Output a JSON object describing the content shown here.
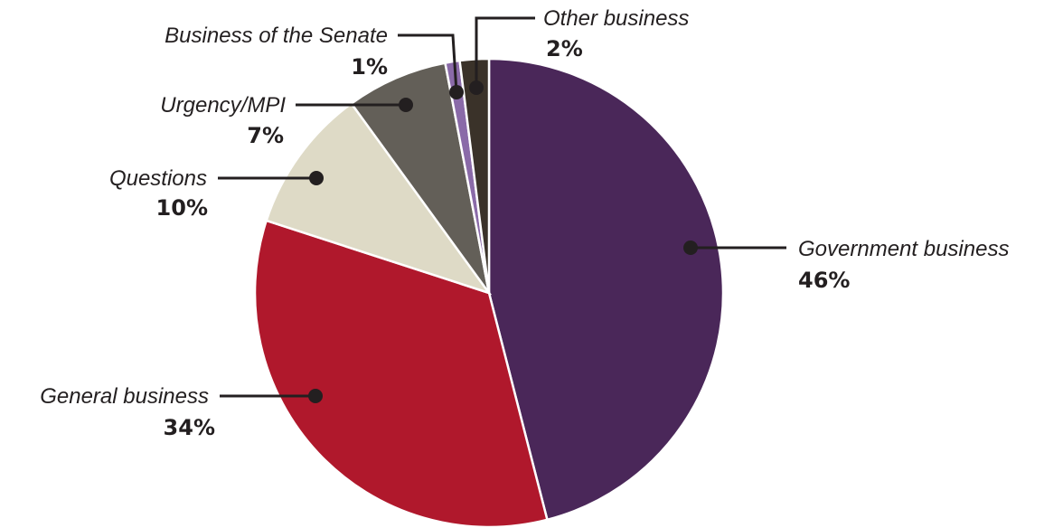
{
  "chart_data": {
    "type": "pie",
    "start_angle_deg": 0,
    "direction": "clockwise",
    "slices": [
      {
        "label": "Government business",
        "value": 46,
        "value_label": "46%",
        "color": "#4a2759"
      },
      {
        "label": "General business",
        "value": 34,
        "value_label": "34%",
        "color": "#b0182c"
      },
      {
        "label": "Questions",
        "value": 10,
        "value_label": "10%",
        "color": "#dedac6"
      },
      {
        "label": "Urgency/MPI",
        "value": 7,
        "value_label": "7%",
        "color": "#635f58"
      },
      {
        "label": "Business of the Senate",
        "value": 1,
        "value_label": "1%",
        "color": "#8a6aa8"
      },
      {
        "label": "Other business",
        "value": 2,
        "value_label": "2%",
        "color": "#3a3229"
      }
    ],
    "leader_color": "#231f20",
    "slice_border_color": "#ffffff"
  }
}
